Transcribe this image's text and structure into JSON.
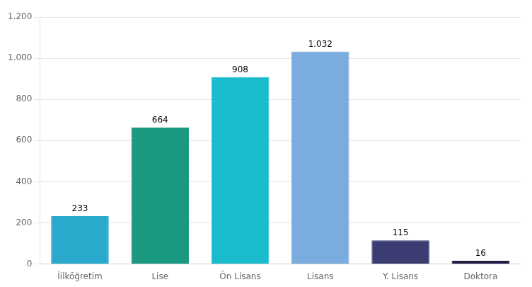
{
  "chart_data": {
    "type": "bar",
    "categories": [
      "İilköğretim",
      "Lise",
      "Ön Lisans",
      "Lisans",
      "Y. Lisans",
      "Doktora"
    ],
    "values": [
      233,
      664,
      908,
      1032,
      115,
      16
    ],
    "value_labels": [
      "233",
      "664",
      "908",
      "1.032",
      "115",
      "16"
    ],
    "colors": [
      "#29AACC",
      "#1A9980",
      "#1ABBCC",
      "#7AADDE",
      "#3A3C72",
      "#1E1E48"
    ],
    "ylim": [
      0,
      1200
    ],
    "yticks": [
      0,
      200,
      400,
      600,
      800,
      {
        "value": 1000,
        "label": "1.000"
      },
      {
        "value": 1200,
        "label": "1.200"
      }
    ],
    "grid": true,
    "data_labels": true
  }
}
